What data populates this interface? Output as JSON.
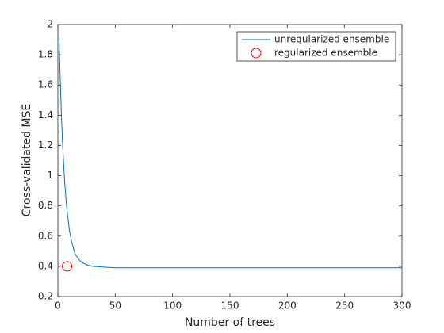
{
  "chart_data": {
    "type": "line",
    "xlabel": "Number of trees",
    "ylabel": "Cross-validated MSE",
    "xlim": [
      0,
      300
    ],
    "ylim": [
      0.2,
      2
    ],
    "xticks": [
      0,
      50,
      100,
      150,
      200,
      250,
      300
    ],
    "yticks": [
      0.2,
      0.4,
      0.6,
      0.8,
      1,
      1.2,
      1.4,
      1.6,
      1.8,
      2
    ],
    "legend": "northeast",
    "series": [
      {
        "name": "unregularized ensemble",
        "color": "#0072bd",
        "mode": "line",
        "x": [
          1,
          2,
          3,
          4,
          5,
          6,
          7,
          8,
          10,
          12,
          15,
          20,
          25,
          30,
          40,
          50,
          100,
          150,
          200,
          250,
          300
        ],
        "values": [
          1.9,
          1.65,
          1.42,
          1.23,
          1.08,
          0.95,
          0.85,
          0.77,
          0.64,
          0.56,
          0.48,
          0.43,
          0.41,
          0.4,
          0.395,
          0.39,
          0.39,
          0.39,
          0.39,
          0.39,
          0.39
        ]
      },
      {
        "name": "regularized ensemble",
        "color": "#ff0000",
        "mode": "marker",
        "x": [
          8
        ],
        "values": [
          0.4
        ]
      }
    ]
  }
}
